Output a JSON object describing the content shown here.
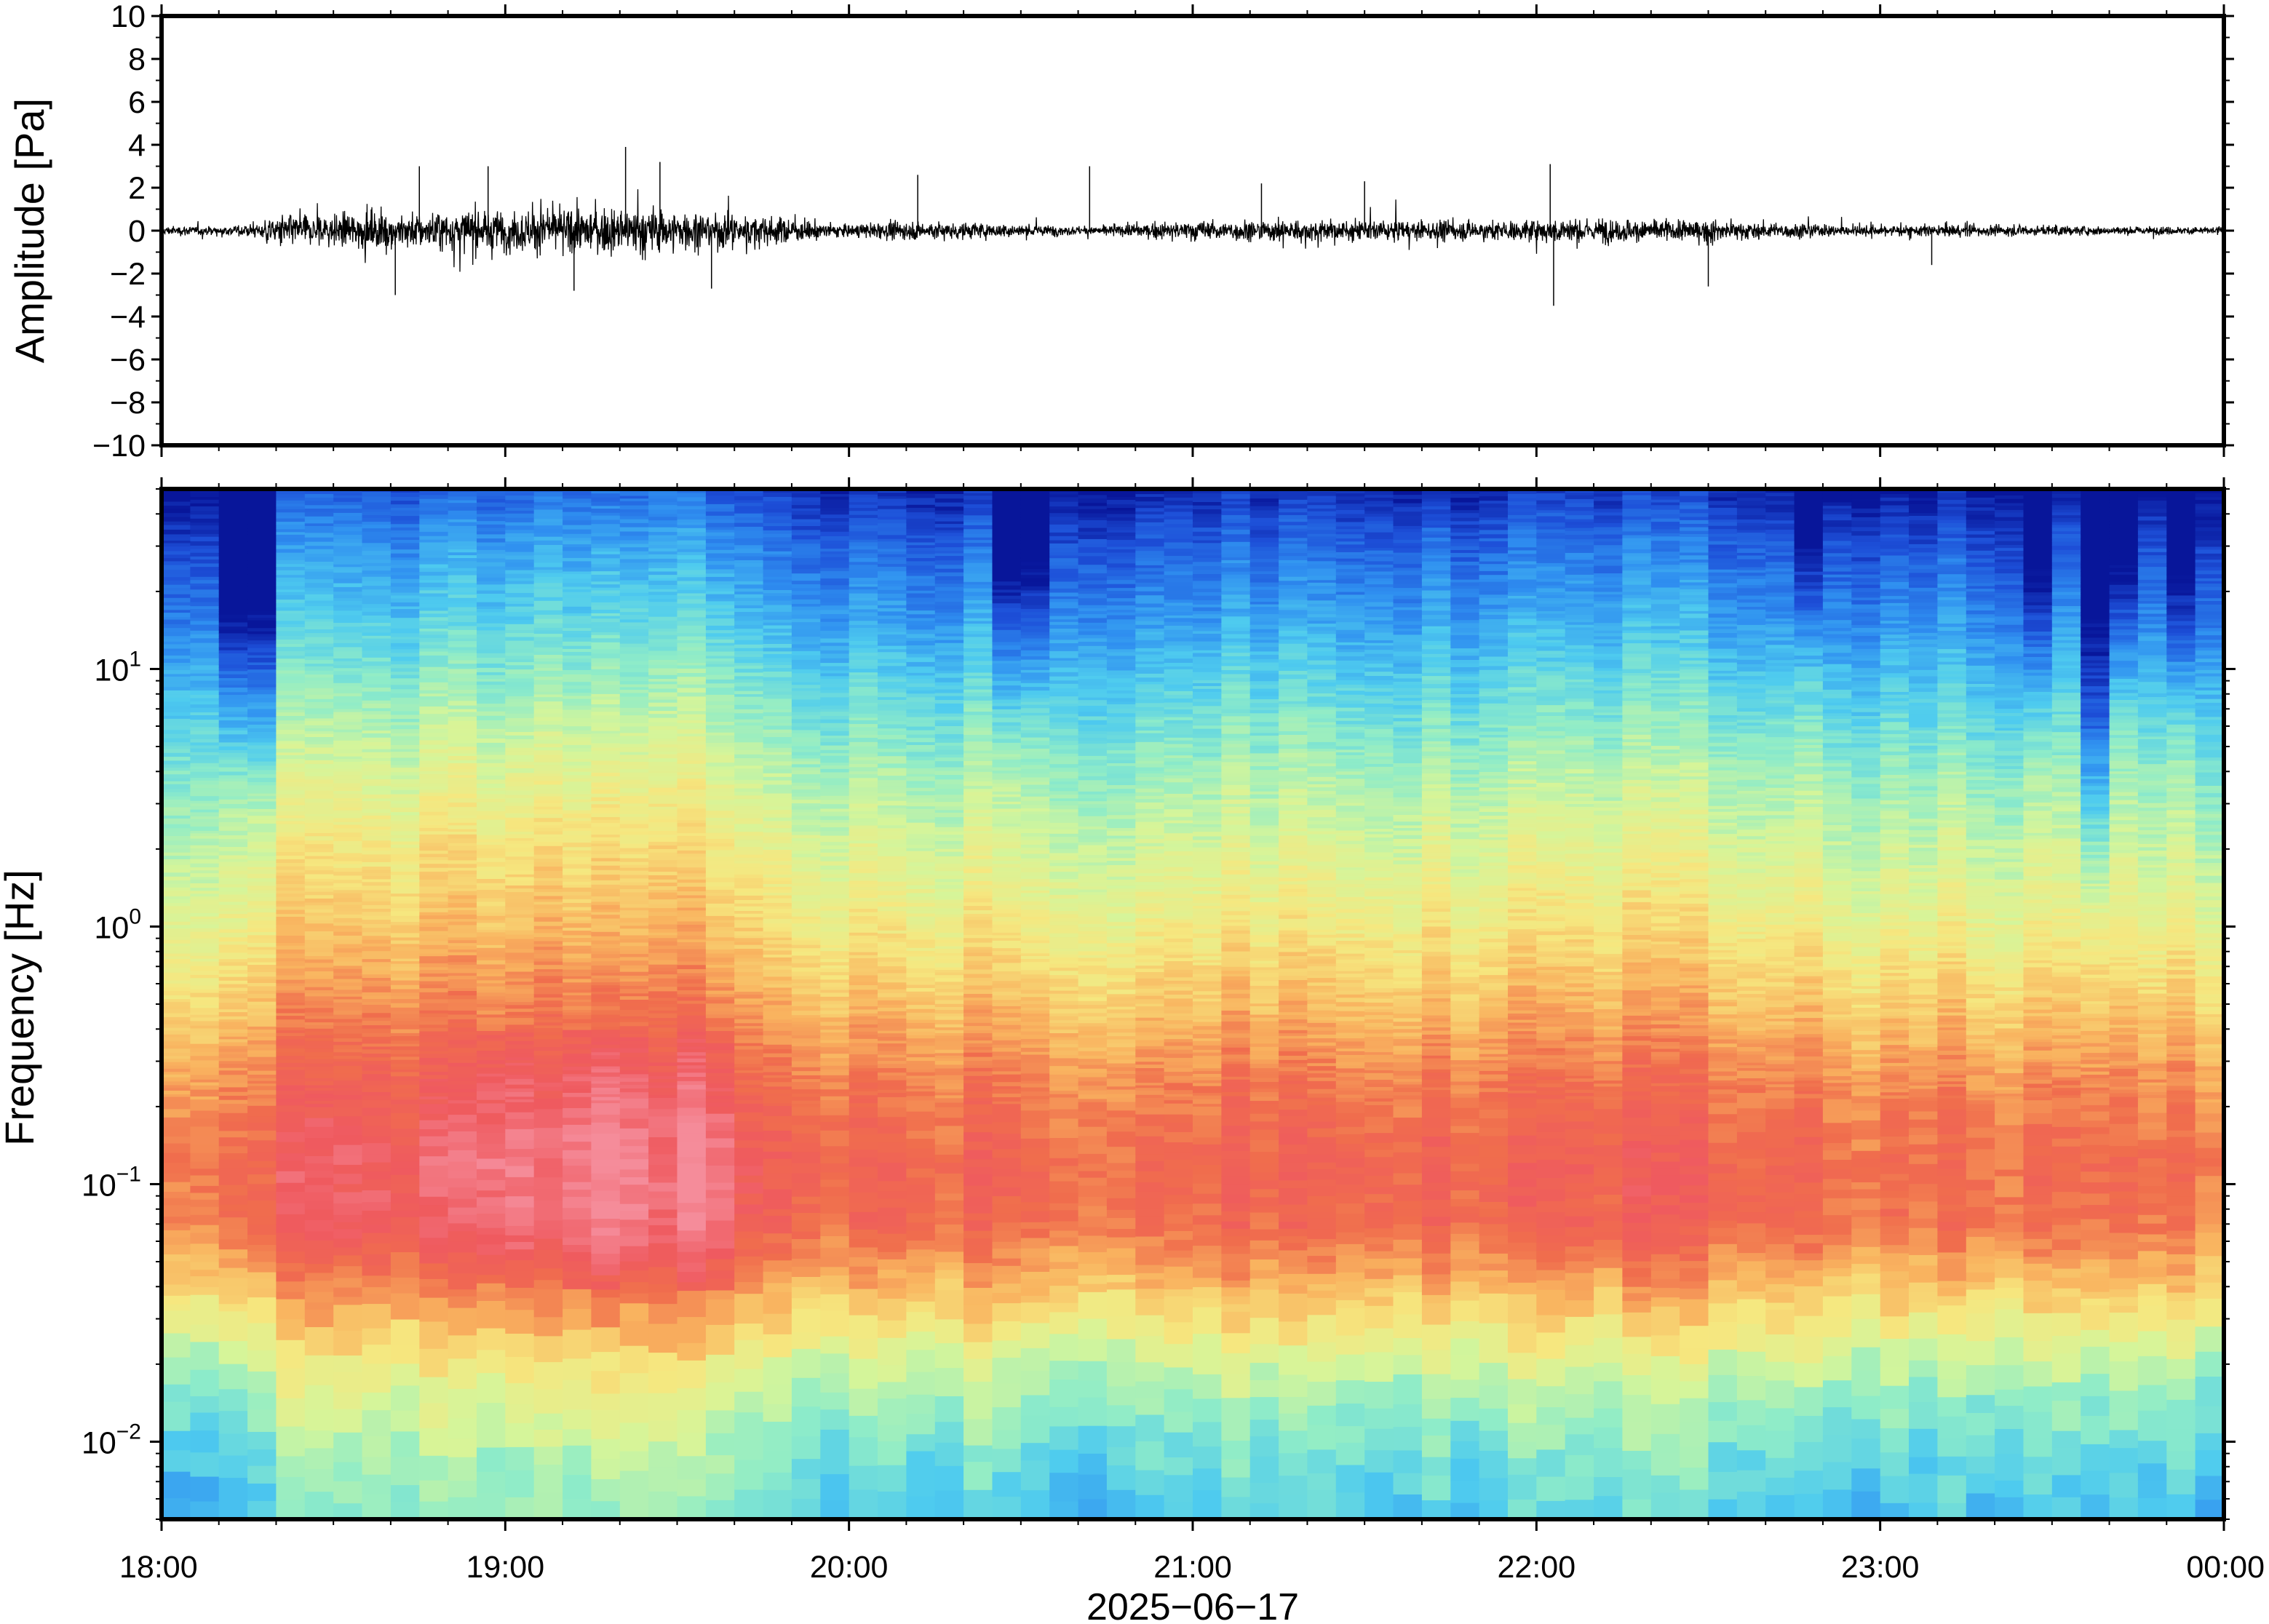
{
  "chart_data": [
    {
      "type": "line",
      "panel": "waveform",
      "title": "",
      "xlabel": "",
      "ylabel": "Amplitude [Pa]",
      "ylim": [
        -10,
        10
      ],
      "yticks": [
        10,
        8,
        6,
        4,
        2,
        0,
        -2,
        -4,
        -6,
        -8,
        -10
      ],
      "ytick_labels": [
        "10",
        "8",
        "6",
        "4",
        "2",
        "0",
        "−2",
        "−4",
        "−6",
        "−8",
        "−10"
      ],
      "xlim": [
        "18:00",
        "00:00"
      ],
      "grid": false,
      "series_color": "#000000",
      "envelope": {
        "x_hours": [
          0.0,
          0.2,
          0.28,
          0.3,
          0.6,
          1.0,
          1.4,
          1.8,
          2.0,
          2.2,
          2.5,
          2.7,
          3.0,
          3.3,
          3.6,
          3.9,
          4.1,
          4.4,
          4.6,
          4.9,
          5.2,
          5.5,
          5.8,
          6.0
        ],
        "amplitude_pa": [
          0.4,
          0.45,
          0.6,
          1.3,
          1.6,
          1.9,
          2.1,
          1.2,
          0.55,
          0.9,
          0.6,
          0.35,
          0.9,
          1.0,
          0.85,
          0.9,
          1.1,
          1.0,
          0.8,
          0.5,
          0.55,
          0.45,
          0.35,
          0.4
        ]
      },
      "spikes": [
        {
          "time_hours": 0.68,
          "amplitude_pa": -3.0
        },
        {
          "time_hours": 0.75,
          "amplitude_pa": 3.0
        },
        {
          "time_hours": 0.95,
          "amplitude_pa": 3.0
        },
        {
          "time_hours": 1.2,
          "amplitude_pa": -2.8
        },
        {
          "time_hours": 1.35,
          "amplitude_pa": 3.9
        },
        {
          "time_hours": 1.45,
          "amplitude_pa": 3.2
        },
        {
          "time_hours": 1.6,
          "amplitude_pa": -2.7
        },
        {
          "time_hours": 2.2,
          "amplitude_pa": 2.6
        },
        {
          "time_hours": 2.7,
          "amplitude_pa": 3.0
        },
        {
          "time_hours": 3.2,
          "amplitude_pa": 2.2
        },
        {
          "time_hours": 3.5,
          "amplitude_pa": 2.3
        },
        {
          "time_hours": 4.04,
          "amplitude_pa": 3.1
        },
        {
          "time_hours": 4.05,
          "amplitude_pa": -3.5
        },
        {
          "time_hours": 4.5,
          "amplitude_pa": -2.6
        },
        {
          "time_hours": 5.15,
          "amplitude_pa": -1.6
        }
      ]
    },
    {
      "type": "heatmap",
      "panel": "spectrogram",
      "title": "",
      "xlabel": "2025−06−17",
      "ylabel": "Frequency [Hz]",
      "yscale": "log",
      "ylim": [
        0.005,
        50
      ],
      "yticks": [
        {
          "value": 10,
          "base": "10",
          "exponent": "1"
        },
        {
          "value": 1,
          "base": "10",
          "exponent": "0"
        },
        {
          "value": 0.1,
          "base": "10",
          "exponent": "−1"
        },
        {
          "value": 0.01,
          "base": "10",
          "exponent": "−2"
        }
      ],
      "xticks": [
        "18:00",
        "19:00",
        "20:00",
        "21:00",
        "22:00",
        "23:00",
        "00:00"
      ],
      "colormap": [
        "#08169a",
        "#1d4fd8",
        "#2f8ff0",
        "#4ecbef",
        "#8fecc8",
        "#d5f59a",
        "#f6e77f",
        "#f9b35f",
        "#f06d4d",
        "#ef5a5f",
        "#f58c9a"
      ],
      "grid": false,
      "time_bins": 72,
      "dark_columns_hours": [
        0.2,
        0.3,
        2.45,
        2.55,
        4.8,
        5.45,
        5.6,
        5.7,
        5.9
      ],
      "dark_columns_depth_hz": [
        12,
        10,
        20,
        25,
        35,
        20,
        4,
        25,
        20
      ],
      "bright_columns_hours": [
        0.95,
        1.05,
        1.2,
        1.35,
        1.6
      ],
      "peak_band_hz": [
        0.05,
        0.3
      ],
      "log10_power_profile": {
        "freq_hz": [
          50,
          30,
          15,
          8,
          4,
          2,
          1,
          0.5,
          0.25,
          0.12,
          0.07,
          0.045,
          0.03,
          0.02,
          0.013,
          0.008,
          0.005
        ],
        "color_level": [
          0.06,
          0.16,
          0.26,
          0.36,
          0.46,
          0.54,
          0.61,
          0.7,
          0.8,
          0.86,
          0.84,
          0.74,
          0.64,
          0.52,
          0.44,
          0.37,
          0.33
        ]
      }
    }
  ]
}
